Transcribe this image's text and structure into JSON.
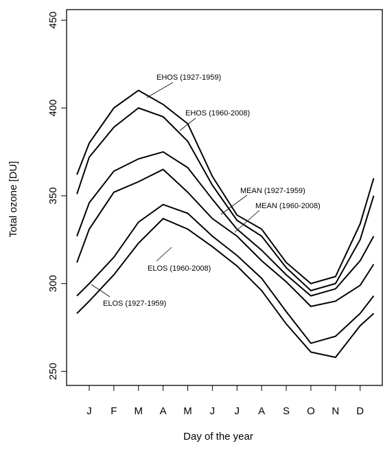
{
  "chart_data": {
    "type": "line",
    "x_label": "Day of the year",
    "y_label": "Total ozone [DU]",
    "x": [
      0.5,
      1,
      2,
      3,
      4,
      5,
      6,
      7,
      8,
      9,
      10,
      11,
      12,
      12.55
    ],
    "xlim": [
      0.08,
      12.9
    ],
    "xticks": [
      {
        "value": 1,
        "label": "J"
      },
      {
        "value": 2,
        "label": "F"
      },
      {
        "value": 3,
        "label": "M"
      },
      {
        "value": 4,
        "label": "A"
      },
      {
        "value": 5,
        "label": "M"
      },
      {
        "value": 6,
        "label": "J"
      },
      {
        "value": 7,
        "label": "J"
      },
      {
        "value": 8,
        "label": "A"
      },
      {
        "value": 9,
        "label": "S"
      },
      {
        "value": 10,
        "label": "O"
      },
      {
        "value": 11,
        "label": "N"
      },
      {
        "value": 12,
        "label": "D"
      }
    ],
    "ylim": [
      242,
      456
    ],
    "yticks": [
      250,
      300,
      350,
      400,
      450
    ],
    "grid": false,
    "series": [
      {
        "name": "EHOS (1927-1959)",
        "color": "#000000",
        "values": [
          362,
          380,
          400,
          410,
          402,
          391,
          361,
          339,
          331,
          312,
          300,
          304,
          334,
          360
        ]
      },
      {
        "name": "EHOS (1960-2008)",
        "color": "#000000",
        "values": [
          351,
          372,
          389,
          400,
          395,
          381,
          356,
          336,
          327,
          309,
          296,
          300,
          325,
          350
        ]
      },
      {
        "name": "MEAN (1927-1959)",
        "color": "#000000",
        "values": [
          327,
          346,
          364,
          371,
          375,
          366,
          348,
          331,
          319,
          305,
          293,
          297,
          313,
          327
        ]
      },
      {
        "name": "MEAN (1960-2008)",
        "color": "#000000",
        "values": [
          312,
          331,
          352,
          358,
          365,
          352,
          337,
          327,
          313,
          301,
          287,
          290,
          299,
          311
        ]
      },
      {
        "name": "ELOS (1960-2008)",
        "color": "#000000",
        "values": [
          293,
          300,
          315,
          335,
          345,
          340,
          327,
          316,
          303,
          284,
          266,
          270,
          283,
          293
        ]
      },
      {
        "name": "ELOS (1927-1959)",
        "color": "#000000",
        "values": [
          283,
          290,
          305,
          323,
          337,
          331,
          321,
          310,
          296,
          277,
          261,
          258,
          276,
          283
        ]
      }
    ]
  }
}
